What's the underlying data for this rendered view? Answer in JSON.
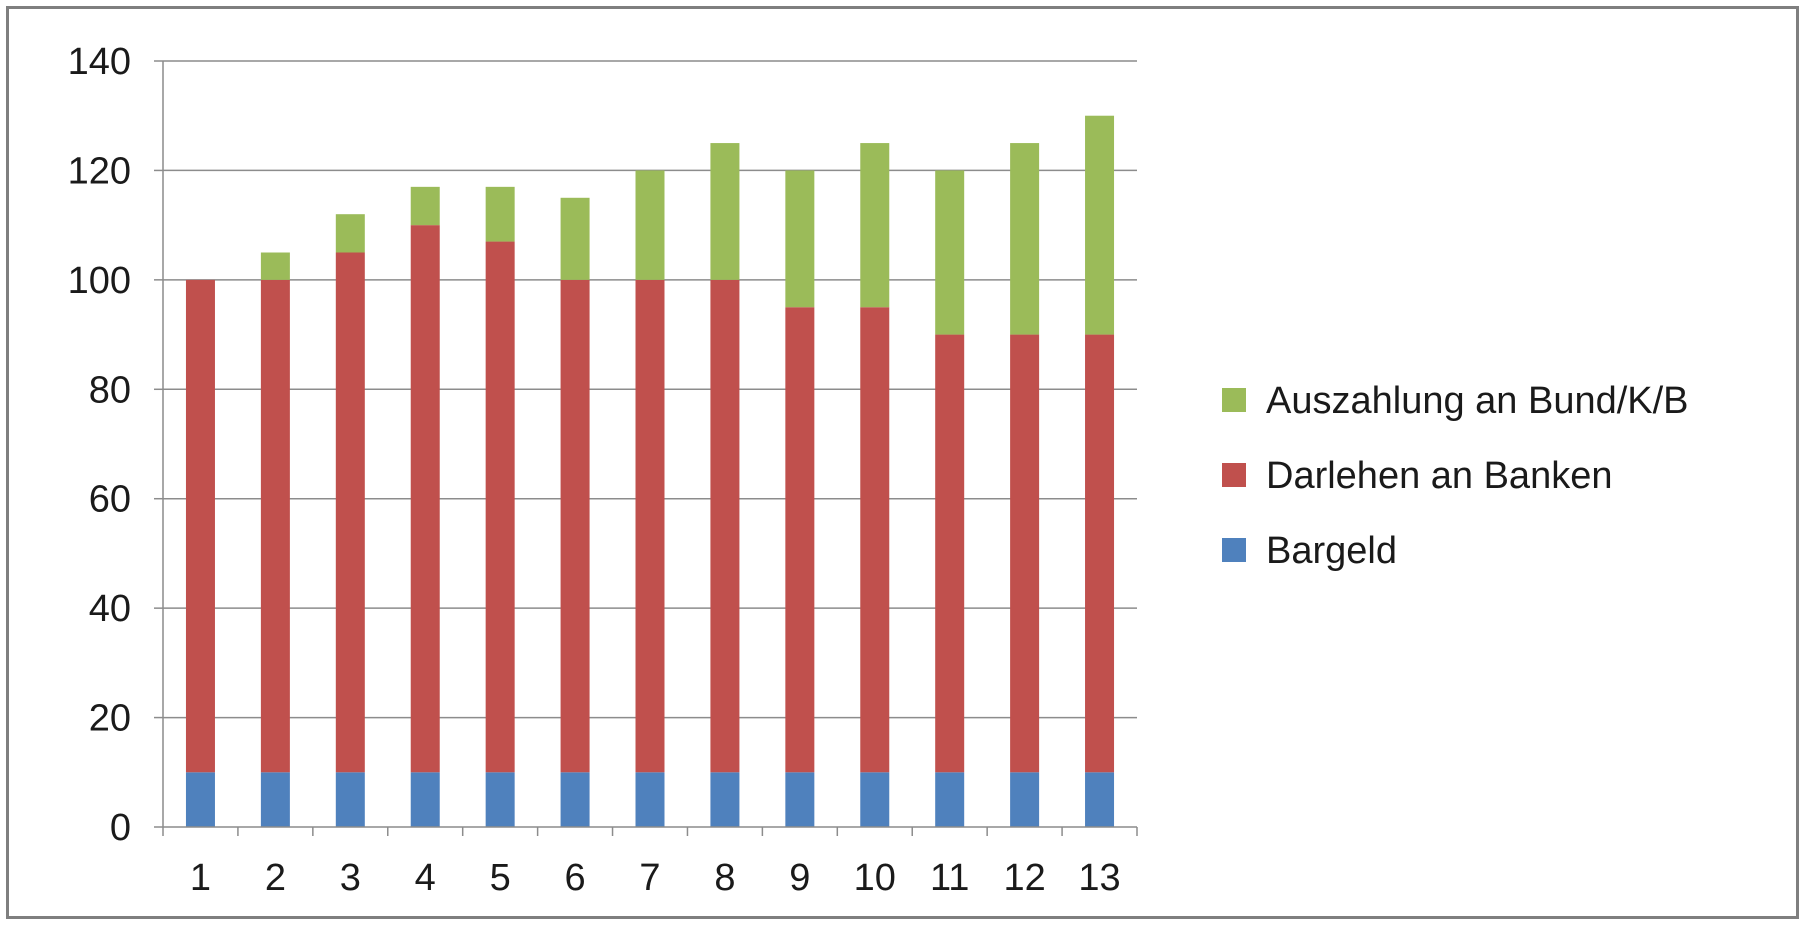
{
  "chart_data": {
    "type": "bar",
    "stacked": true,
    "categories": [
      "1",
      "2",
      "3",
      "4",
      "5",
      "6",
      "7",
      "8",
      "9",
      "10",
      "11",
      "12",
      "13"
    ],
    "series": [
      {
        "name": "Bargeld",
        "color": "#4f81bd",
        "values": [
          10,
          10,
          10,
          10,
          10,
          10,
          10,
          10,
          10,
          10,
          10,
          10,
          10
        ]
      },
      {
        "name": "Darlehen an Banken",
        "color": "#c0504d",
        "values": [
          90,
          90,
          95,
          100,
          97,
          90,
          90,
          90,
          85,
          85,
          80,
          80,
          80
        ]
      },
      {
        "name": "Auszahlung an Bund/K/B",
        "color": "#9bbb59",
        "values": [
          0,
          5,
          7,
          7,
          10,
          15,
          20,
          25,
          25,
          30,
          30,
          35,
          40
        ]
      }
    ],
    "ylim": [
      0,
      140
    ],
    "yticks": [
      "0",
      "20",
      "40",
      "60",
      "80",
      "100",
      "120",
      "140"
    ],
    "title": "",
    "xlabel": "",
    "ylabel": "",
    "grid": true,
    "legend_position": "right",
    "legend_order": [
      "Auszahlung an Bund/K/B",
      "Darlehen an Banken",
      "Bargeld"
    ],
    "colors": {
      "grid": "#8c8c8c",
      "axis": "#8c8c8c",
      "frame": "#7f7f7f"
    }
  }
}
